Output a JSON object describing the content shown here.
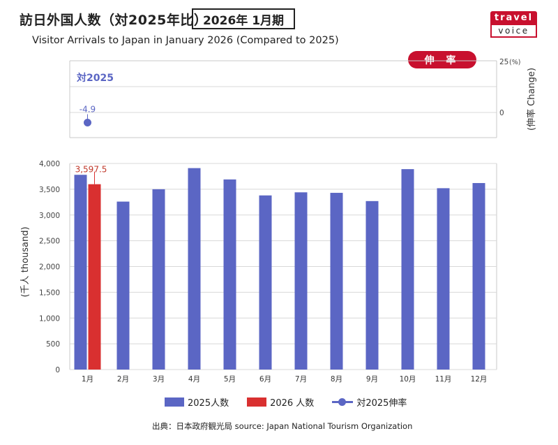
{
  "header": {
    "title_jp": "訪日外国人数（対2025年比）",
    "period": "2026年 1月期",
    "title_en": "Visitor Arrivals to Japan in January 2026 (Compared to  2025)"
  },
  "logo": {
    "top": "travel",
    "bottom": "voice"
  },
  "rate_panel": {
    "pill_label": "伸 率",
    "series_label": "対2025",
    "right_axis_title": "(伸率 Change)",
    "right_ticks": [
      {
        "value": 25,
        "label": "25"
      },
      {
        "value": 0,
        "label": "0"
      }
    ],
    "unit": "(%)"
  },
  "left_axis_title": "(千人 thousand)",
  "legend": {
    "s2025": "2025人数",
    "s2026": "2026 人数",
    "rate": "対2025伸率"
  },
  "source": "出典：日本政府観光局  source: Japan National Tourism Organization",
  "colors": {
    "series_2025": "#5b66c4",
    "series_2026": "#d93030",
    "accent": "#c8102e"
  },
  "chart_data": {
    "type": "bar",
    "categories": [
      "1月",
      "2月",
      "3月",
      "4月",
      "5月",
      "6月",
      "7月",
      "8月",
      "9月",
      "10月",
      "11月",
      "12月"
    ],
    "series": [
      {
        "name": "2025人数",
        "values": [
          3780,
          3260,
          3500,
          3910,
          3690,
          3380,
          3440,
          3430,
          3270,
          3890,
          3520,
          3620
        ]
      },
      {
        "name": "2026 人数",
        "values": [
          3597.5,
          null,
          null,
          null,
          null,
          null,
          null,
          null,
          null,
          null,
          null,
          null
        ]
      }
    ],
    "data_labels": [
      {
        "series": "2026 人数",
        "category": "1月",
        "label": "3,597.5"
      }
    ],
    "ylim": [
      0,
      4000
    ],
    "yticks": [
      {
        "value": 0,
        "label": "0"
      },
      {
        "value": 500,
        "label": "500"
      },
      {
        "value": 1000,
        "label": "1,000"
      },
      {
        "value": 1500,
        "label": "1,500"
      },
      {
        "value": 2000,
        "label": "2,000"
      },
      {
        "value": 2500,
        "label": "2,500"
      },
      {
        "value": 3000,
        "label": "3,000"
      },
      {
        "value": 3500,
        "label": "3,500"
      },
      {
        "value": 4000,
        "label": "4,000"
      }
    ],
    "rate": {
      "name": "対2025伸率",
      "points": [
        {
          "category": "1月",
          "value": -4.9,
          "label": "-4.9"
        }
      ]
    },
    "grid": true
  }
}
